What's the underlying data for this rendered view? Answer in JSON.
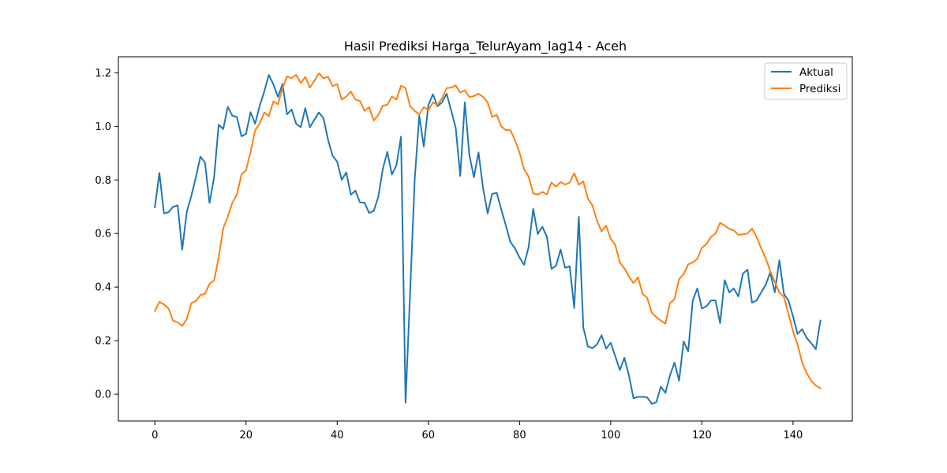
{
  "chart_data": {
    "type": "line",
    "title": "Hasil Prediksi Harga_TelurAyam_lag14 - Aceh",
    "xlabel": "",
    "ylabel": "",
    "xlim": [
      -8,
      153
    ],
    "ylim": [
      -0.1,
      1.26
    ],
    "xticks": [
      0,
      20,
      40,
      60,
      80,
      100,
      120,
      140
    ],
    "yticks": [
      0.0,
      0.2,
      0.4,
      0.6,
      0.8,
      1.0,
      1.2
    ],
    "ytick_labels": [
      "0.0",
      "0.2",
      "0.4",
      "0.6",
      "0.8",
      "1.0",
      "1.2"
    ],
    "grid": false,
    "legend_position": "top-right",
    "colors": {
      "aktual": "#1f77b4",
      "prediksi": "#ff7f0e"
    },
    "series": [
      {
        "name": "Aktual",
        "color": "#1f77b4",
        "values": [
          0.698,
          0.826,
          0.675,
          0.68,
          0.7,
          0.705,
          0.54,
          0.68,
          0.74,
          0.81,
          0.887,
          0.865,
          0.714,
          0.81,
          1.006,
          0.99,
          1.073,
          1.04,
          1.035,
          0.963,
          0.972,
          1.053,
          1.01,
          1.077,
          1.13,
          1.192,
          1.157,
          1.11,
          1.158,
          1.045,
          1.063,
          1.01,
          0.997,
          1.068,
          0.997,
          1.025,
          1.052,
          1.03,
          0.95,
          0.89,
          0.868,
          0.8,
          0.828,
          0.745,
          0.76,
          0.716,
          0.715,
          0.677,
          0.684,
          0.735,
          0.84,
          0.905,
          0.82,
          0.855,
          0.962,
          -0.032,
          0.38,
          0.8,
          1.04,
          0.925,
          1.08,
          1.12,
          1.075,
          1.09,
          1.122,
          1.06,
          0.995,
          0.815,
          1.09,
          0.893,
          0.81,
          0.903,
          0.77,
          0.675,
          0.748,
          0.752,
          0.69,
          0.63,
          0.568,
          0.545,
          0.51,
          0.483,
          0.55,
          0.692,
          0.598,
          0.625,
          0.588,
          0.468,
          0.479,
          0.54,
          0.472,
          0.478,
          0.322,
          0.662,
          0.248,
          0.178,
          0.172,
          0.186,
          0.22,
          0.17,
          0.192,
          0.142,
          0.09,
          0.136,
          0.07,
          -0.015,
          -0.01,
          -0.01,
          -0.012,
          -0.036,
          -0.03,
          0.028,
          0.005,
          0.07,
          0.118,
          0.05,
          0.197,
          0.16,
          0.35,
          0.395,
          0.32,
          0.328,
          0.35,
          0.35,
          0.265,
          0.426,
          0.38,
          0.395,
          0.365,
          0.45,
          0.465,
          0.342,
          0.35,
          0.38,
          0.408,
          0.455,
          0.38,
          0.5,
          0.375,
          0.35,
          0.29,
          0.225,
          0.243,
          0.21,
          0.19,
          0.168,
          0.275
        ]
      },
      {
        "name": "Prediksi",
        "color": "#ff7f0e",
        "values": [
          0.31,
          0.345,
          0.335,
          0.32,
          0.275,
          0.268,
          0.255,
          0.28,
          0.34,
          0.348,
          0.37,
          0.375,
          0.412,
          0.425,
          0.51,
          0.62,
          0.662,
          0.715,
          0.745,
          0.82,
          0.836,
          0.905,
          0.985,
          1.012,
          1.052,
          1.038,
          1.093,
          1.083,
          1.143,
          1.187,
          1.18,
          1.192,
          1.162,
          1.185,
          1.145,
          1.17,
          1.198,
          1.18,
          1.185,
          1.15,
          1.158,
          1.1,
          1.112,
          1.13,
          1.1,
          1.095,
          1.058,
          1.072,
          1.022,
          1.042,
          1.078,
          1.08,
          1.112,
          1.1,
          1.152,
          1.143,
          1.075,
          1.058,
          1.045,
          1.072,
          1.06,
          1.09,
          1.08,
          1.105,
          1.143,
          1.145,
          1.153,
          1.126,
          1.135,
          1.11,
          1.113,
          1.122,
          1.11,
          1.09,
          1.035,
          1.043,
          1.0,
          0.986,
          0.986,
          0.948,
          0.902,
          0.84,
          0.812,
          0.75,
          0.745,
          0.755,
          0.746,
          0.79,
          0.775,
          0.792,
          0.783,
          0.79,
          0.825,
          0.782,
          0.795,
          0.73,
          0.705,
          0.648,
          0.608,
          0.63,
          0.58,
          0.558,
          0.492,
          0.47,
          0.44,
          0.415,
          0.436,
          0.375,
          0.36,
          0.305,
          0.288,
          0.275,
          0.263,
          0.34,
          0.355,
          0.43,
          0.448,
          0.485,
          0.492,
          0.505,
          0.547,
          0.56,
          0.588,
          0.6,
          0.64,
          0.63,
          0.617,
          0.612,
          0.595,
          0.597,
          0.6,
          0.618,
          0.588,
          0.545,
          0.508,
          0.46,
          0.42,
          0.38,
          0.363,
          0.3,
          0.235,
          0.185,
          0.118,
          0.078,
          0.05,
          0.032,
          0.022
        ]
      }
    ]
  }
}
